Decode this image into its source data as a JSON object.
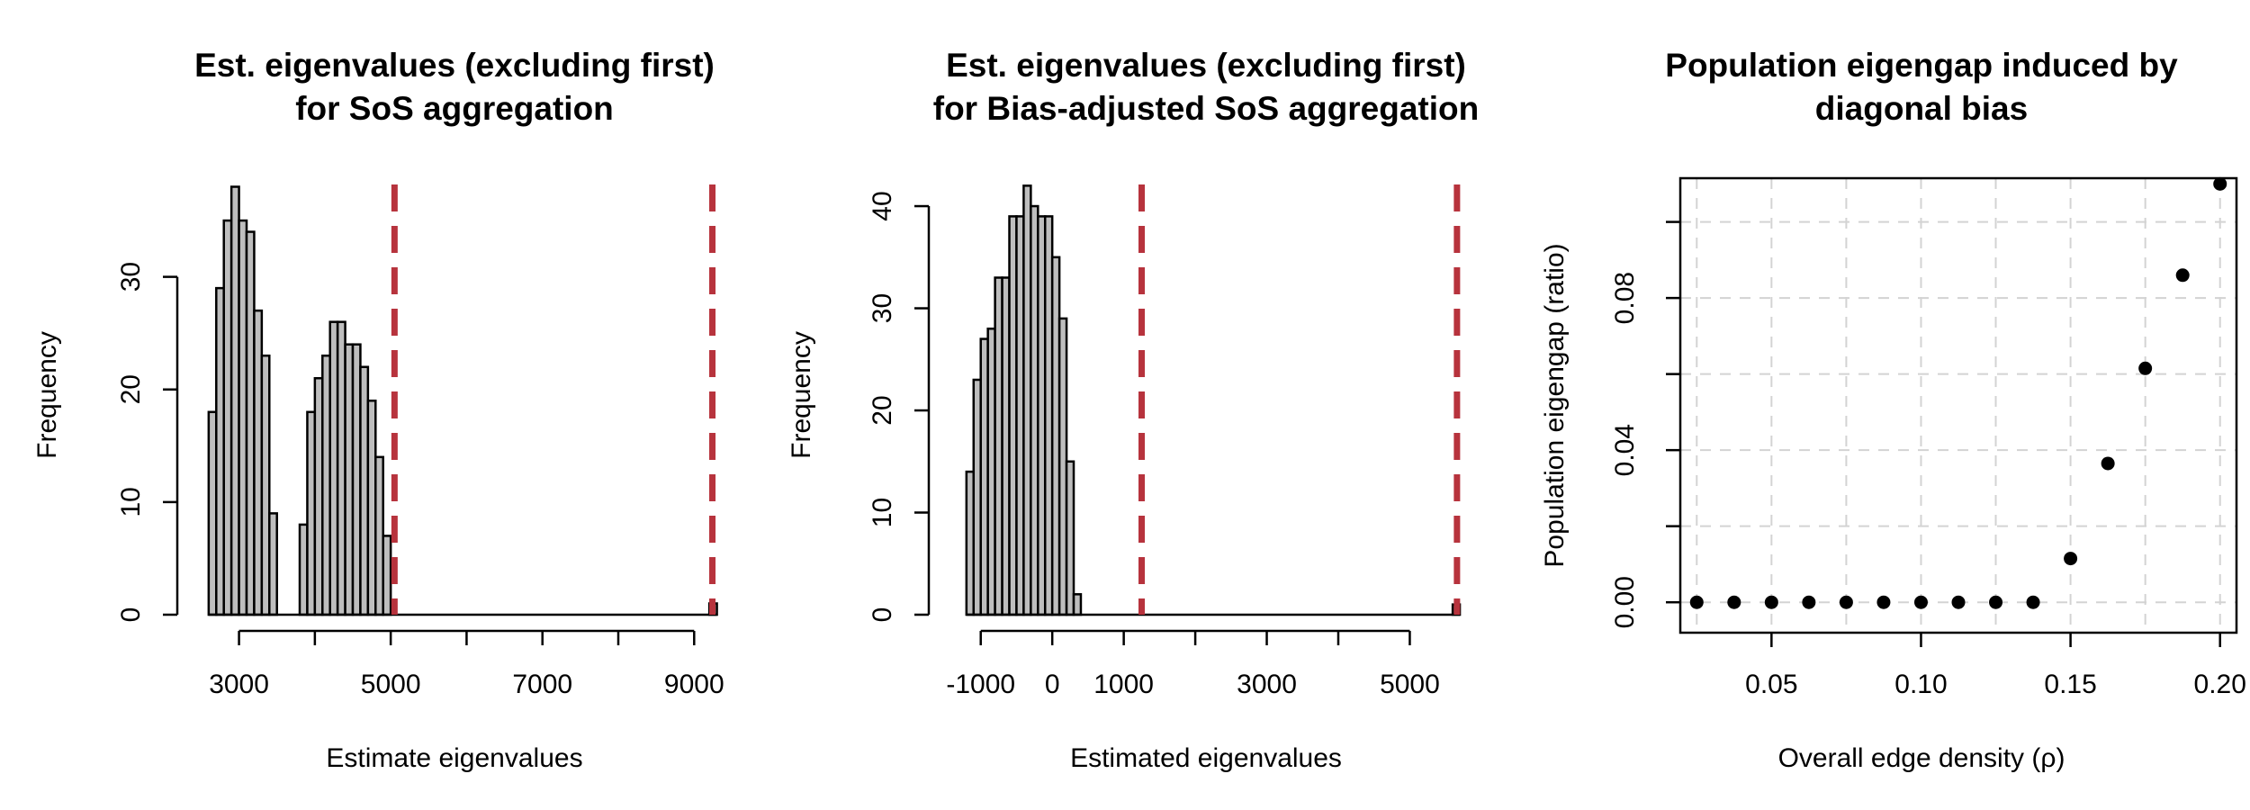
{
  "chart_data": [
    {
      "type": "bar",
      "subtype": "histogram",
      "title_lines": [
        "Est. eigenvalues (excluding first)",
        "for SoS aggregation"
      ],
      "xlabel": "Estimate eigenvalues",
      "ylabel": "Frequency",
      "xlim": [
        2400,
        9400
      ],
      "ylim": [
        0,
        39
      ],
      "x_ticks": [
        3000,
        4000,
        5000,
        6000,
        7000,
        8000,
        9000
      ],
      "x_tick_labels": [
        "3000",
        "",
        "5000",
        "",
        "7000",
        "",
        "9000"
      ],
      "y_ticks": [
        0,
        10,
        20,
        30
      ],
      "y_tick_labels": [
        "0",
        "10",
        "20",
        "30"
      ],
      "bin_start": 2600,
      "bin_width": 100,
      "counts": [
        18,
        29,
        35,
        38,
        35,
        34,
        27,
        23,
        9,
        0,
        0,
        0,
        8,
        18,
        21,
        23,
        26,
        26,
        24,
        24,
        22,
        19,
        14,
        7,
        0,
        0,
        0,
        0,
        0,
        0,
        0,
        0,
        0,
        0,
        0,
        0,
        0,
        0,
        0,
        0,
        0,
        0,
        0,
        0,
        0,
        0,
        0,
        0,
        0,
        0,
        0,
        0,
        0,
        0,
        0,
        0,
        0,
        0,
        0,
        0,
        0,
        0,
        0,
        0,
        0,
        0,
        1
      ],
      "vlines": [
        5050,
        9240
      ],
      "vline_color": "#b7333d"
    },
    {
      "type": "bar",
      "subtype": "histogram",
      "title_lines": [
        "Est. eigenvalues (excluding first)",
        "for Bias-adjusted SoS aggregation"
      ],
      "xlabel": "Estimated eigenvalues",
      "ylabel": "Frequency",
      "xlim": [
        -1500,
        5800
      ],
      "ylim": [
        0,
        43
      ],
      "x_ticks": [
        -1000,
        0,
        1000,
        2000,
        3000,
        4000,
        5000
      ],
      "x_tick_labels": [
        "-1000",
        "0",
        "1000",
        "",
        "3000",
        "",
        "5000"
      ],
      "y_ticks": [
        0,
        10,
        20,
        30,
        40
      ],
      "y_tick_labels": [
        "0",
        "10",
        "20",
        "30",
        "40"
      ],
      "bin_start": -1200,
      "bin_width": 100,
      "counts": [
        14,
        23,
        27,
        28,
        33,
        33,
        39,
        39,
        42,
        40,
        39,
        39,
        35,
        29,
        15,
        2,
        0,
        0,
        0,
        0,
        0,
        0,
        0,
        0,
        0,
        0,
        0,
        0,
        0,
        0,
        0,
        0,
        0,
        0,
        0,
        0,
        0,
        0,
        0,
        0,
        0,
        0,
        0,
        0,
        0,
        0,
        0,
        0,
        0,
        0,
        0,
        0,
        0,
        0,
        0,
        0,
        0,
        0,
        0,
        0,
        0,
        0,
        0,
        0,
        0,
        0,
        0,
        0,
        1
      ],
      "vlines": [
        1250,
        5660
      ],
      "vline_color": "#b7333d"
    },
    {
      "type": "scatter",
      "title_lines": [
        "Population eigengap induced by",
        "diagonal bias"
      ],
      "xlabel": "Overall edge density (ρ)",
      "ylabel": "Population eigengap (ratio)",
      "xlim": [
        0.0195,
        0.2055
      ],
      "ylim": [
        -0.008,
        0.1115
      ],
      "x_ticks": [
        0.05,
        0.1,
        0.15,
        0.2
      ],
      "x_tick_labels": [
        "0.05",
        "0.10",
        "0.15",
        "0.20"
      ],
      "y_ticks": [
        0.0,
        0.04,
        0.08
      ],
      "y_tick_labels": [
        "0.00",
        "0.04",
        "0.08"
      ],
      "grid_x": [
        0.025,
        0.05,
        0.075,
        0.1,
        0.125,
        0.15,
        0.175,
        0.2
      ],
      "grid_y": [
        0.0,
        0.02,
        0.04,
        0.06,
        0.08,
        0.1
      ],
      "grid": true,
      "x": [
        0.025,
        0.0375,
        0.05,
        0.0625,
        0.075,
        0.0875,
        0.1,
        0.1125,
        0.125,
        0.1375,
        0.15,
        0.1625,
        0.175,
        0.1875,
        0.2
      ],
      "y": [
        0,
        0,
        0,
        0,
        0,
        0,
        0,
        0,
        0,
        0,
        0.0115,
        0.0365,
        0.0615,
        0.086,
        0.11
      ]
    }
  ]
}
